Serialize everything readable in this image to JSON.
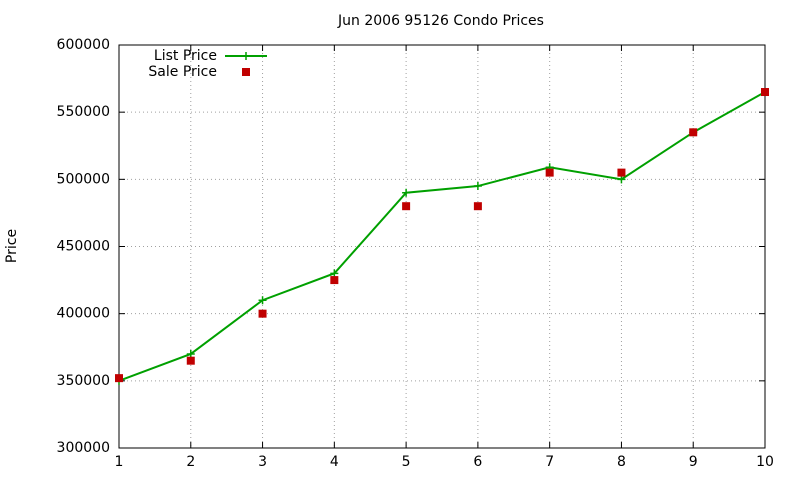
{
  "chart_data": {
    "type": "line",
    "title": "Jun 2006 95126 Condo Prices",
    "y_label": "Price",
    "x": [
      1,
      2,
      3,
      4,
      5,
      6,
      7,
      8,
      9,
      10
    ],
    "series": [
      {
        "name": "List Price",
        "color": "#00a000",
        "style": "linespoints",
        "values": [
          350000,
          370000,
          410000,
          430000,
          490000,
          495000,
          509000,
          500000,
          535000,
          565000
        ]
      },
      {
        "name": "Sale Price",
        "color": "#c00000",
        "style": "points",
        "values": [
          352000,
          365000,
          400000,
          425000,
          480000,
          480000,
          505000,
          505000,
          535000,
          565000
        ]
      }
    ],
    "xlim": [
      1,
      10
    ],
    "xticks": [
      1,
      2,
      3,
      4,
      5,
      6,
      7,
      8,
      9,
      10
    ],
    "ylim": [
      300000,
      600000
    ],
    "yticks": [
      300000,
      350000,
      400000,
      450000,
      500000,
      550000,
      600000
    ],
    "grid": true,
    "legend": "top-left"
  }
}
